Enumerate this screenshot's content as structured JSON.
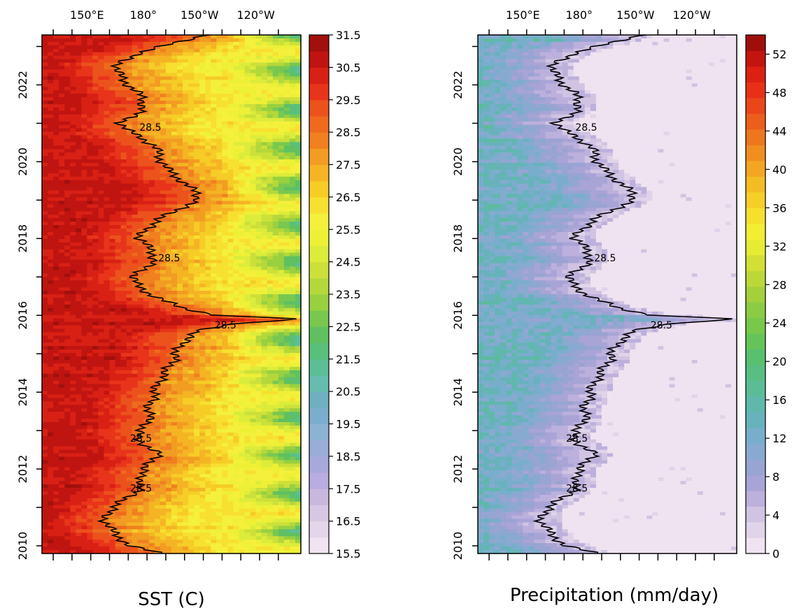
{
  "chart_data": [
    {
      "type": "heatmap",
      "title": "SST (C)",
      "x_tick_labels": [
        "150°E",
        "180°",
        "150°W",
        "120°W"
      ],
      "x_ticks_lon": [
        150,
        180,
        210,
        240
      ],
      "x_range_lon": [
        126,
        264
      ],
      "y_tick_labels": [
        "2010",
        "2012",
        "2014",
        "2016",
        "2018",
        "2020",
        "2022"
      ],
      "y_ticks_year": [
        2010,
        2012,
        2014,
        2016,
        2018,
        2020,
        2022
      ],
      "y_range_year": [
        2009.8,
        2023.3
      ],
      "colorbar": {
        "labels": [
          "31.5",
          "30.5",
          "29.5",
          "28.5",
          "27.5",
          "26.5",
          "25.5",
          "24.5",
          "23.5",
          "22.5",
          "21.5",
          "20.5",
          "19.5",
          "18.5",
          "17.5",
          "16.5",
          "15.5"
        ],
        "min": 15.5,
        "max": 31.5,
        "step": 0.5,
        "colors_low_to_high": [
          "#f0e4f0",
          "#e4d6ea",
          "#d6c8e4",
          "#c8b8de",
          "#b8ace0",
          "#a8a8dc",
          "#9aacd8",
          "#8cb2d4",
          "#7aaecc",
          "#6eb0c0",
          "#66bcae",
          "#5cbe96",
          "#58c07a",
          "#60c060",
          "#78c850",
          "#98d040",
          "#b4d83a",
          "#cce03a",
          "#dcec3a",
          "#eef036",
          "#f4f03c",
          "#f8e030",
          "#f6cc26",
          "#f4b424",
          "#f29c22",
          "#f08020",
          "#ee6a1e",
          "#ec521c",
          "#e8341a",
          "#d82014",
          "#c01410",
          "#a0100c"
        ]
      },
      "contour": {
        "level_label": "28.5",
        "labels_at": [
          [
            2020.9,
            178
          ],
          [
            2017.5,
            188
          ],
          [
            2015.75,
            218
          ],
          [
            2012.8,
            173
          ],
          [
            2011.5,
            173
          ]
        ],
        "path_year_lon": [
          [
            2009.8,
            190
          ],
          [
            2010.0,
            172
          ],
          [
            2010.2,
            168
          ],
          [
            2010.4,
            163
          ],
          [
            2010.6,
            160
          ],
          [
            2010.8,
            160
          ],
          [
            2011.0,
            164
          ],
          [
            2011.2,
            170
          ],
          [
            2011.4,
            176
          ],
          [
            2011.6,
            180
          ],
          [
            2011.8,
            178
          ],
          [
            2012.0,
            180
          ],
          [
            2012.2,
            185
          ],
          [
            2012.4,
            188
          ],
          [
            2012.6,
            182
          ],
          [
            2012.8,
            176
          ],
          [
            2013.0,
            178
          ],
          [
            2013.2,
            183
          ],
          [
            2013.4,
            183
          ],
          [
            2013.6,
            183
          ],
          [
            2013.8,
            185
          ],
          [
            2014.0,
            186
          ],
          [
            2014.2,
            188
          ],
          [
            2014.4,
            190
          ],
          [
            2014.6,
            193
          ],
          [
            2014.8,
            196
          ],
          [
            2015.0,
            197
          ],
          [
            2015.2,
            200
          ],
          [
            2015.4,
            203
          ],
          [
            2015.6,
            210
          ],
          [
            2015.8,
            230
          ],
          [
            2015.9,
            265
          ],
          [
            2016.0,
            220
          ],
          [
            2016.2,
            200
          ],
          [
            2016.4,
            190
          ],
          [
            2016.6,
            182
          ],
          [
            2016.8,
            176
          ],
          [
            2017.0,
            175
          ],
          [
            2017.2,
            180
          ],
          [
            2017.4,
            185
          ],
          [
            2017.6,
            186
          ],
          [
            2017.8,
            182
          ],
          [
            2018.0,
            178
          ],
          [
            2018.2,
            180
          ],
          [
            2018.4,
            186
          ],
          [
            2018.6,
            192
          ],
          [
            2018.8,
            200
          ],
          [
            2019.0,
            210
          ],
          [
            2019.2,
            208
          ],
          [
            2019.4,
            203
          ],
          [
            2019.6,
            198
          ],
          [
            2019.8,
            193
          ],
          [
            2020.0,
            190
          ],
          [
            2020.2,
            188
          ],
          [
            2020.4,
            186
          ],
          [
            2020.6,
            180
          ],
          [
            2020.8,
            172
          ],
          [
            2021.0,
            168
          ],
          [
            2021.2,
            175
          ],
          [
            2021.4,
            180
          ],
          [
            2021.6,
            180
          ],
          [
            2021.8,
            177
          ],
          [
            2022.0,
            172
          ],
          [
            2022.2,
            168
          ],
          [
            2022.4,
            166
          ],
          [
            2022.6,
            168
          ],
          [
            2022.8,
            176
          ],
          [
            2023.0,
            190
          ],
          [
            2023.2,
            205
          ],
          [
            2023.3,
            212
          ]
        ]
      }
    },
    {
      "type": "heatmap",
      "title": "Precipitation (mm/day)",
      "x_tick_labels": [
        "150°E",
        "180°",
        "150°W",
        "120°W"
      ],
      "x_ticks_lon": [
        150,
        180,
        210,
        240
      ],
      "x_range_lon": [
        126,
        264
      ],
      "y_tick_labels": [
        "2010",
        "2012",
        "2014",
        "2016",
        "2018",
        "2020",
        "2022"
      ],
      "y_ticks_year": [
        2010,
        2012,
        2014,
        2016,
        2018,
        2020,
        2022
      ],
      "y_range_year": [
        2009.8,
        2023.3
      ],
      "colorbar": {
        "labels": [
          "52",
          "48",
          "44",
          "40",
          "36",
          "32",
          "28",
          "24",
          "20",
          "16",
          "12",
          "8",
          "4",
          "0"
        ],
        "min": 0,
        "max": 54,
        "step": 2,
        "colors_low_to_high": [
          "#efe3f1",
          "#e0d4ea",
          "#d0c4e2",
          "#bcb0dc",
          "#a8a4d6",
          "#98a4d2",
          "#88aad0",
          "#78aecb",
          "#68b2bc",
          "#60b8ac",
          "#5cbc98",
          "#58be82",
          "#58c06e",
          "#64c45a",
          "#78c84c",
          "#8ccc44",
          "#a4d03c",
          "#bcd838",
          "#d2e036",
          "#e6ec34",
          "#f2ee34",
          "#f6e02e",
          "#f6ce28",
          "#f4bc24",
          "#f2a622",
          "#f08e20",
          "#ee761e",
          "#ec5e1c",
          "#ea461a",
          "#e83018",
          "#dc2014",
          "#c41410",
          "#a00e0c"
        ]
      },
      "contour": {
        "level_label": "28.5",
        "labels_at": [
          [
            2020.9,
            178
          ],
          [
            2017.5,
            188
          ],
          [
            2015.75,
            218
          ],
          [
            2012.8,
            173
          ],
          [
            2011.5,
            173
          ]
        ]
      }
    }
  ]
}
